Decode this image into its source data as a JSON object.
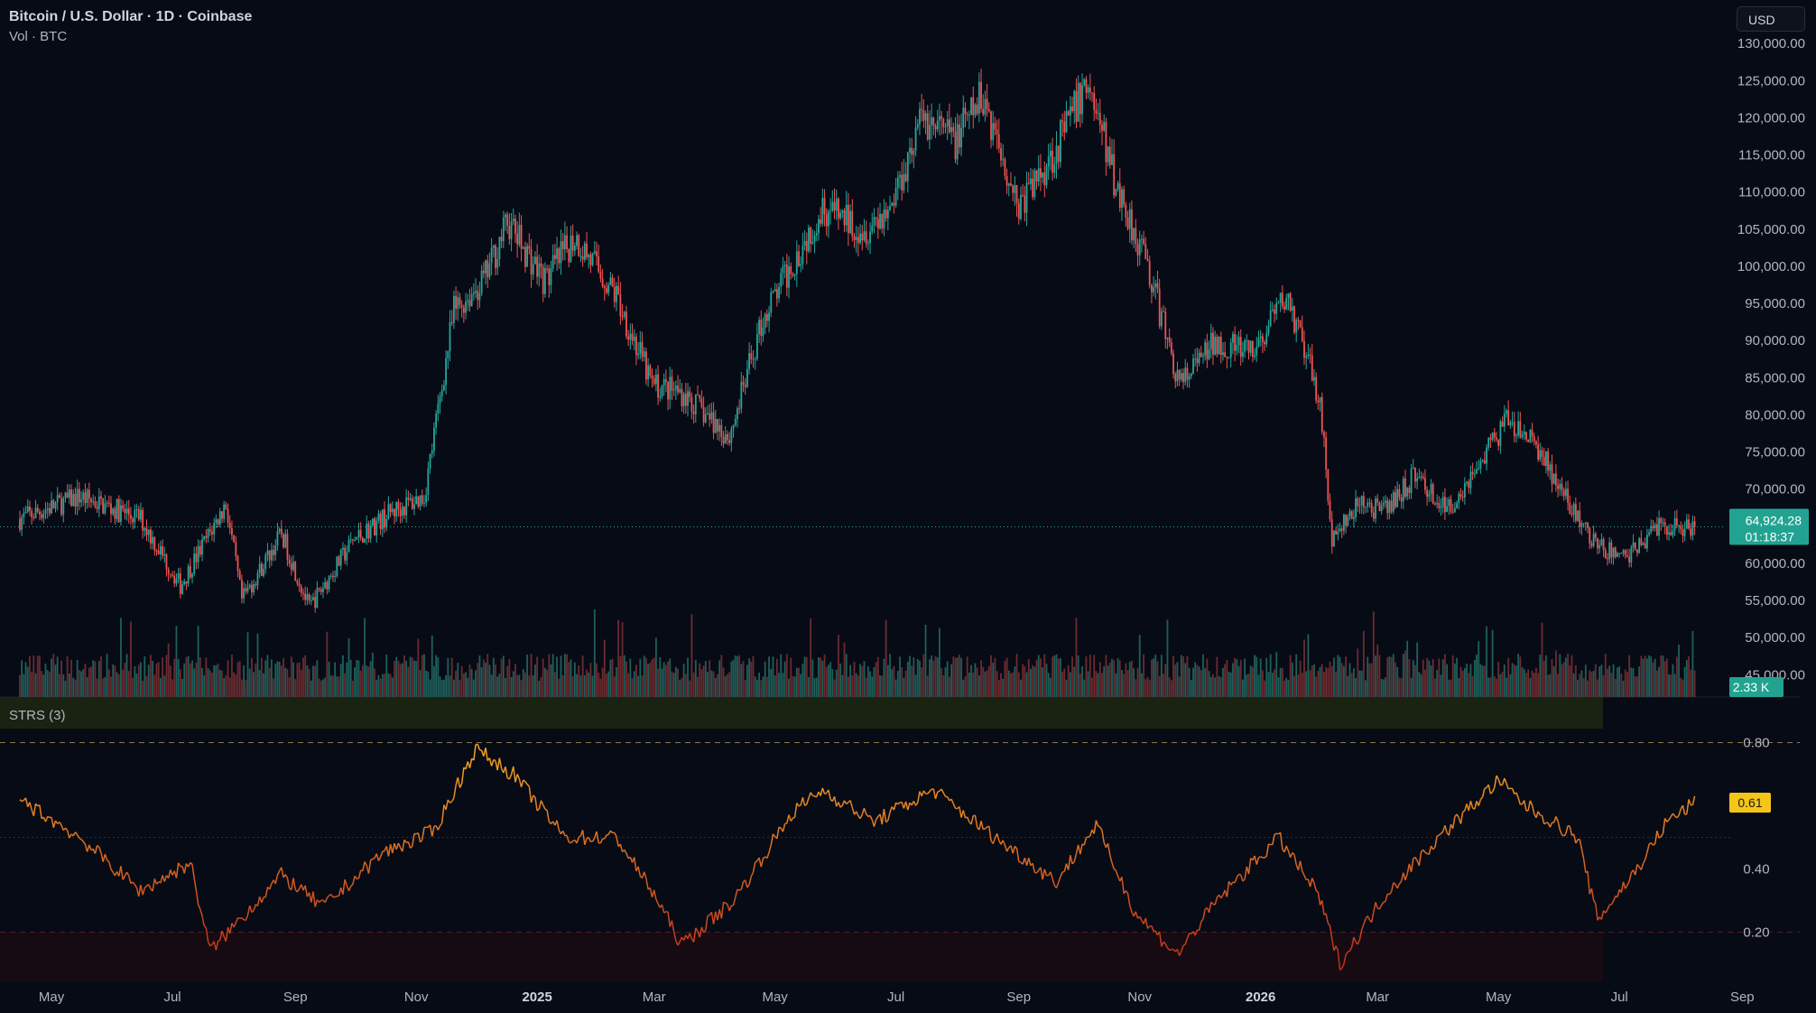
{
  "header": {
    "title": "Bitcoin / U.S. Dollar · 1D · Coinbase",
    "volume_label": "Vol · BTC"
  },
  "currency_button": "USD",
  "indicator": {
    "label": "STRS (3)"
  },
  "colors": {
    "up": "#26a69a",
    "down": "#ef5350",
    "strs_high": "#f5a623",
    "strs_low": "#c0301e",
    "background": "#070b16"
  },
  "chart_data": [
    {
      "type": "candlestick",
      "title": "Bitcoin / U.S. Dollar · 1D · Coinbase",
      "y_axis": {
        "min": 42000,
        "max": 131000,
        "ticks": [
          "130,000.00",
          "125,000.00",
          "120,000.00",
          "115,000.00",
          "110,000.00",
          "105,000.00",
          "100,000.00",
          "95,000.00",
          "90,000.00",
          "85,000.00",
          "80,000.00",
          "75,000.00",
          "70,000.00",
          "65,000.00",
          "60,000.00",
          "55,000.00",
          "50,000.00",
          "45,000.00"
        ]
      },
      "x_axis": {
        "labels": [
          "May",
          "Jul",
          "Sep",
          "Nov",
          "2025",
          "Mar",
          "May",
          "Jul",
          "Sep",
          "Nov",
          "2026",
          "Mar",
          "May",
          "Jul",
          "Sep"
        ]
      },
      "series": [
        {
          "name": "Price",
          "x": [
            "2024-04-15",
            "2024-05-15",
            "2024-06-15",
            "2024-07-05",
            "2024-07-28",
            "2024-08-05",
            "2024-08-25",
            "2024-09-08",
            "2024-09-30",
            "2024-10-20",
            "2024-11-05",
            "2024-11-20",
            "2024-12-05",
            "2024-12-17",
            "2025-01-05",
            "2025-01-20",
            "2025-02-10",
            "2025-02-28",
            "2025-03-15",
            "2025-04-08",
            "2025-04-25",
            "2025-05-15",
            "2025-05-25",
            "2025-06-15",
            "2025-06-28",
            "2025-07-14",
            "2025-07-31",
            "2025-08-14",
            "2025-09-01",
            "2025-09-20",
            "2025-10-06",
            "2025-10-20",
            "2025-11-04",
            "2025-11-21",
            "2025-12-10",
            "2025-12-28",
            "2026-01-14",
            "2026-01-31",
            "2026-02-06",
            "2026-02-20",
            "2026-03-05",
            "2026-03-20",
            "2026-04-05",
            "2026-04-20",
            "2026-05-05",
            "2026-05-20",
            "2026-06-05",
            "2026-06-20",
            "2026-07-05",
            "2026-07-20",
            "2026-08-08"
          ],
          "close": [
            66000,
            69000,
            66000,
            57000,
            68000,
            55000,
            64000,
            54000,
            63000,
            67000,
            69000,
            94000,
            98000,
            106000,
            98000,
            104000,
            96000,
            84000,
            83000,
            77000,
            93000,
            103000,
            108000,
            105000,
            108000,
            120000,
            117000,
            123000,
            108000,
            116000,
            125000,
            111000,
            101000,
            84000,
            90000,
            88000,
            96000,
            82000,
            63000,
            68000,
            67000,
            72000,
            67000,
            73000,
            79000,
            76000,
            68000,
            62000,
            61000,
            65000,
            64924
          ]
        },
        {
          "name": "Volume",
          "last_label": "2.33 K"
        }
      ],
      "last_price": {
        "value": "64,924.28",
        "countdown": "01:18:37"
      }
    },
    {
      "type": "line",
      "title": "STRS (3)",
      "y_axis": {
        "min": 0.05,
        "max": 0.85,
        "ticks": [
          "0.80",
          "0.60",
          "0.40",
          "0.20"
        ]
      },
      "levels": {
        "upper": 0.8,
        "middle": 0.5,
        "lower": 0.2
      },
      "x": [
        "2024-04-15",
        "2024-05-15",
        "2024-06-15",
        "2024-07-10",
        "2024-07-20",
        "2024-08-25",
        "2024-09-15",
        "2024-10-15",
        "2024-11-10",
        "2024-12-01",
        "2024-12-20",
        "2025-01-15",
        "2025-02-10",
        "2025-03-01",
        "2025-03-15",
        "2025-04-10",
        "2025-05-10",
        "2025-05-25",
        "2025-06-20",
        "2025-07-20",
        "2025-08-20",
        "2025-09-20",
        "2025-10-10",
        "2025-10-30",
        "2025-11-20",
        "2025-12-10",
        "2026-01-10",
        "2026-01-30",
        "2026-02-10",
        "2026-03-05",
        "2026-04-01",
        "2026-05-01",
        "2026-05-15",
        "2026-06-10",
        "2026-06-20",
        "2026-07-10",
        "2026-07-25",
        "2026-08-08"
      ],
      "values": [
        0.62,
        0.5,
        0.33,
        0.42,
        0.14,
        0.38,
        0.28,
        0.45,
        0.52,
        0.78,
        0.7,
        0.5,
        0.5,
        0.32,
        0.16,
        0.3,
        0.58,
        0.65,
        0.55,
        0.65,
        0.5,
        0.36,
        0.54,
        0.26,
        0.13,
        0.3,
        0.5,
        0.32,
        0.1,
        0.32,
        0.5,
        0.68,
        0.6,
        0.5,
        0.24,
        0.4,
        0.55,
        0.61
      ],
      "last_label": "0.61"
    }
  ]
}
